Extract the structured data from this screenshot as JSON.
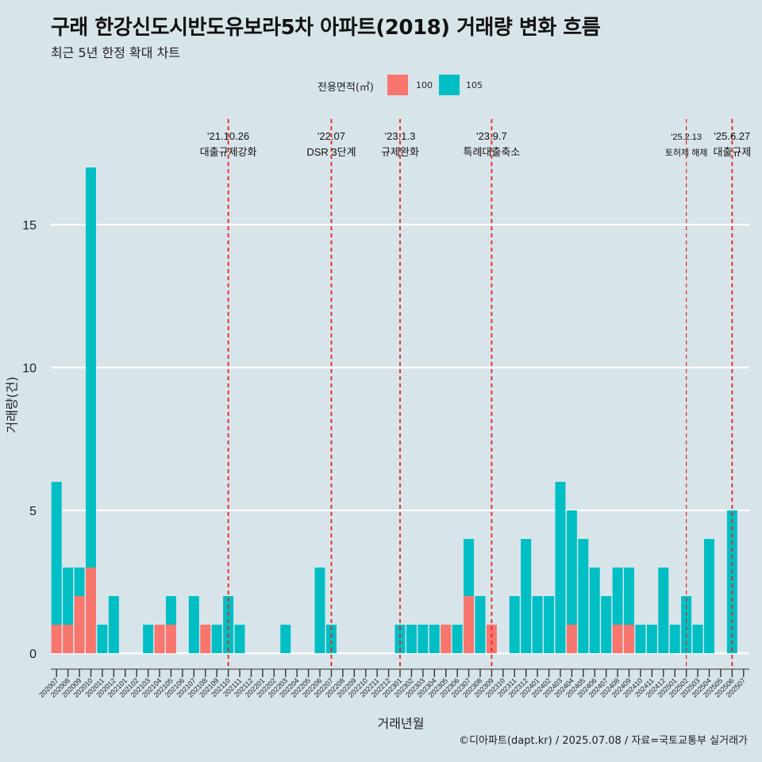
{
  "title": "구래 한강신도시반도유보라5차 아파트(2018) 거래량 변화 흐름",
  "subtitle": "최근 5년 한정 확대 차트",
  "caption": "©디아파트(dapt.kr) / 2025.07.08 / 자료=국토교통부 실거래가",
  "legend": {
    "title": "전용면적(㎡)",
    "items": [
      {
        "label": "100",
        "color": "#f8766d"
      },
      {
        "label": "105",
        "color": "#00bfc4"
      }
    ]
  },
  "chart_data": {
    "type": "bar",
    "stacked": true,
    "xlabel": "거래년월",
    "ylabel": "거래량(건)",
    "ylim": [
      0,
      17
    ],
    "yticks": [
      0,
      5,
      10,
      15
    ],
    "grid": true,
    "legend_position": "top",
    "categories": [
      "202007",
      "202008",
      "202009",
      "202010",
      "202011",
      "202012",
      "202101",
      "202102",
      "202103",
      "202104",
      "202105",
      "202106",
      "202107",
      "202108",
      "202109",
      "202110",
      "202111",
      "202112",
      "202201",
      "202202",
      "202203",
      "202204",
      "202205",
      "202206",
      "202207",
      "202208",
      "202209",
      "202210",
      "202211",
      "202212",
      "202301",
      "202302",
      "202303",
      "202304",
      "202305",
      "202306",
      "202307",
      "202308",
      "202309",
      "202310",
      "202311",
      "202312",
      "202401",
      "202402",
      "202403",
      "202404",
      "202405",
      "202406",
      "202407",
      "202408",
      "202409",
      "202410",
      "202411",
      "202412",
      "202501",
      "202502",
      "202503",
      "202504",
      "202505",
      "202506",
      "202507"
    ],
    "series": [
      {
        "name": "100",
        "color": "#f8766d",
        "values": [
          1,
          1,
          2,
          3,
          0,
          0,
          0,
          0,
          0,
          1,
          1,
          0,
          0,
          1,
          0,
          0,
          0,
          0,
          0,
          0,
          0,
          0,
          0,
          0,
          0,
          0,
          0,
          0,
          0,
          0,
          0,
          0,
          0,
          0,
          1,
          0,
          2,
          0,
          1,
          0,
          0,
          0,
          0,
          0,
          0,
          1,
          0,
          0,
          0,
          1,
          1,
          0,
          0,
          0,
          0,
          0,
          0,
          0,
          0,
          0,
          0
        ]
      },
      {
        "name": "105",
        "color": "#00bfc4",
        "values": [
          5,
          2,
          1,
          14,
          1,
          2,
          0,
          0,
          1,
          0,
          1,
          0,
          2,
          0,
          1,
          2,
          1,
          0,
          0,
          0,
          1,
          0,
          0,
          3,
          1,
          0,
          0,
          0,
          0,
          0,
          1,
          1,
          1,
          1,
          0,
          1,
          2,
          2,
          0,
          0,
          2,
          4,
          2,
          2,
          6,
          4,
          4,
          3,
          2,
          2,
          2,
          1,
          1,
          3,
          1,
          2,
          1,
          4,
          0,
          5,
          0
        ]
      }
    ],
    "events": [
      {
        "date": "'21.10.26",
        "label": "대출규제강화",
        "category": "202110"
      },
      {
        "date": "'22.07",
        "label": "DSR 3단계",
        "category": "202207"
      },
      {
        "date": "'23.1.3",
        "label": "규제완화",
        "category": "202301"
      },
      {
        "date": "'23.9.7",
        "label": "특례대출축소",
        "category": "202309"
      },
      {
        "date": "'25.2.13",
        "label": "토허제 해제",
        "category": "202502"
      },
      {
        "date": "'25.6.27",
        "label": "대출규제",
        "category": "202506"
      }
    ]
  }
}
